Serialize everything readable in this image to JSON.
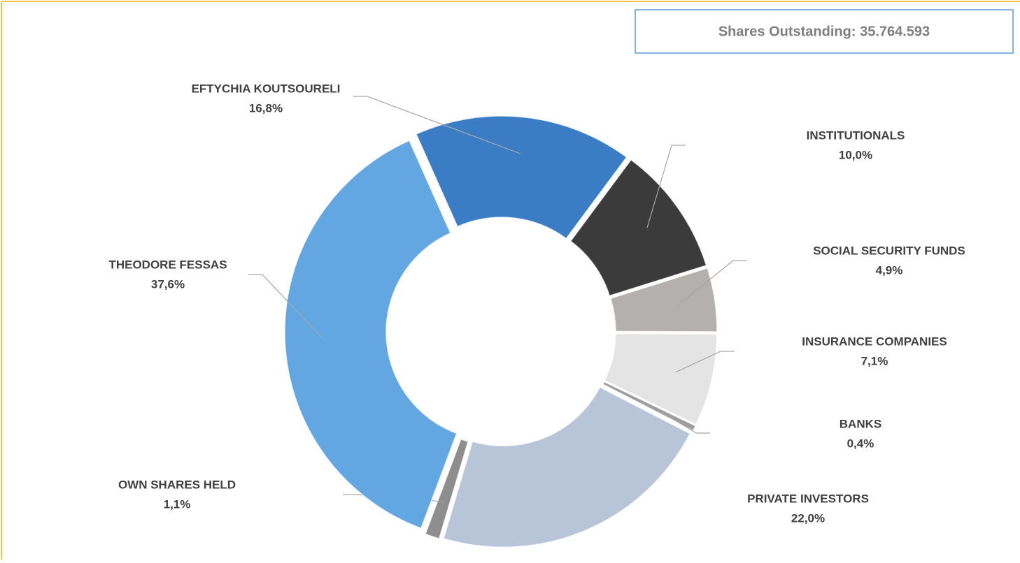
{
  "chart_data": {
    "type": "donut",
    "annotation": "Shares Outstanding: 35.764.593",
    "categories": [
      "EFTYCHIA KOUTSOURELI",
      "INSTITUTIONALS",
      "SOCIAL SECURITY FUNDS",
      "INSURANCE COMPANIES",
      "BANKS",
      "PRIVATE INVESTORS",
      "OWN SHARES HELD",
      "THEODORE FESSAS"
    ],
    "values": [
      16.8,
      10.0,
      4.9,
      7.1,
      0.4,
      22.0,
      1.1,
      37.6
    ],
    "value_labels": [
      "16,8%",
      "10,0%",
      "4,9%",
      "7,1%",
      "0,4%",
      "22,0%",
      "1,1%",
      "37,6%"
    ],
    "colors": [
      "#3a7dc4",
      "#3b3b3b",
      "#b3b0ad",
      "#e4e4e4",
      "#9d9d9d",
      "#b8c4d8",
      "#8e8e8e",
      "#63a7e2"
    ]
  }
}
